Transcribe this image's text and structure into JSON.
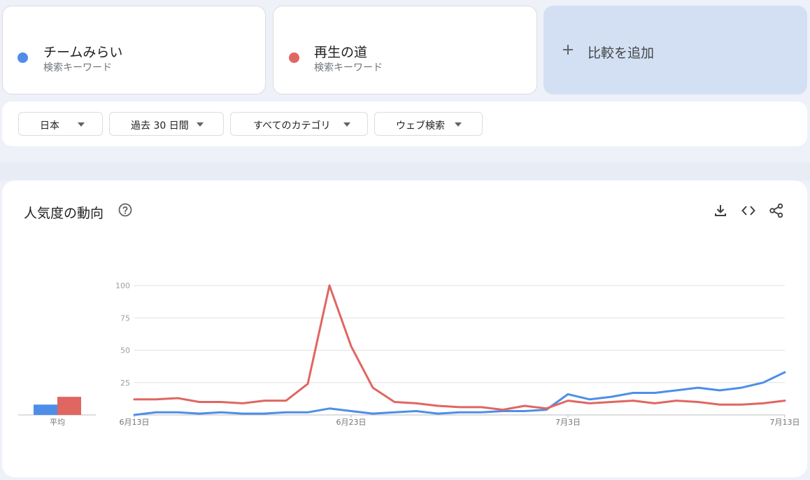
{
  "terms": [
    {
      "name": "チームみらい",
      "sub": "検索キーワード",
      "color": "#4e8ee8"
    },
    {
      "name": "再生の道",
      "sub": "検索キーワード",
      "color": "#e06661"
    }
  ],
  "add_compare": {
    "label": "比較を追加",
    "icon": "plus-icon"
  },
  "filters": [
    {
      "label": "日本"
    },
    {
      "label": "過去 30 日間"
    },
    {
      "label": "すべてのカテゴリ"
    },
    {
      "label": "ウェブ検索"
    }
  ],
  "chart": {
    "title": "人気度の動向",
    "icons": [
      "help-icon",
      "download-icon",
      "embed-icon",
      "share-icon"
    ]
  },
  "chart_data": {
    "type": "line",
    "ylim": [
      0,
      100
    ],
    "yticks": [
      25,
      50,
      75,
      100
    ],
    "x_tick_labels": [
      {
        "label": "6月13日",
        "index": 0
      },
      {
        "label": "6月23日",
        "index": 10
      },
      {
        "label": "7月3日",
        "index": 20
      },
      {
        "label": "7月13日",
        "index": 30
      }
    ],
    "grid": true,
    "average_label": "平均",
    "series": [
      {
        "color": "#4e8ee8",
        "average": 8,
        "values": [
          0,
          2,
          2,
          1,
          2,
          1,
          1,
          2,
          2,
          5,
          3,
          1,
          2,
          3,
          1,
          2,
          2,
          3,
          3,
          4,
          16,
          12,
          14,
          17,
          17,
          19,
          21,
          19,
          21,
          25,
          33
        ]
      },
      {
        "color": "#e06661",
        "average": 14,
        "values": [
          12,
          12,
          13,
          10,
          10,
          9,
          11,
          11,
          24,
          100,
          53,
          21,
          10,
          9,
          7,
          6,
          6,
          4,
          7,
          5,
          11,
          9,
          10,
          11,
          9,
          11,
          10,
          8,
          8,
          9,
          11
        ]
      }
    ]
  }
}
